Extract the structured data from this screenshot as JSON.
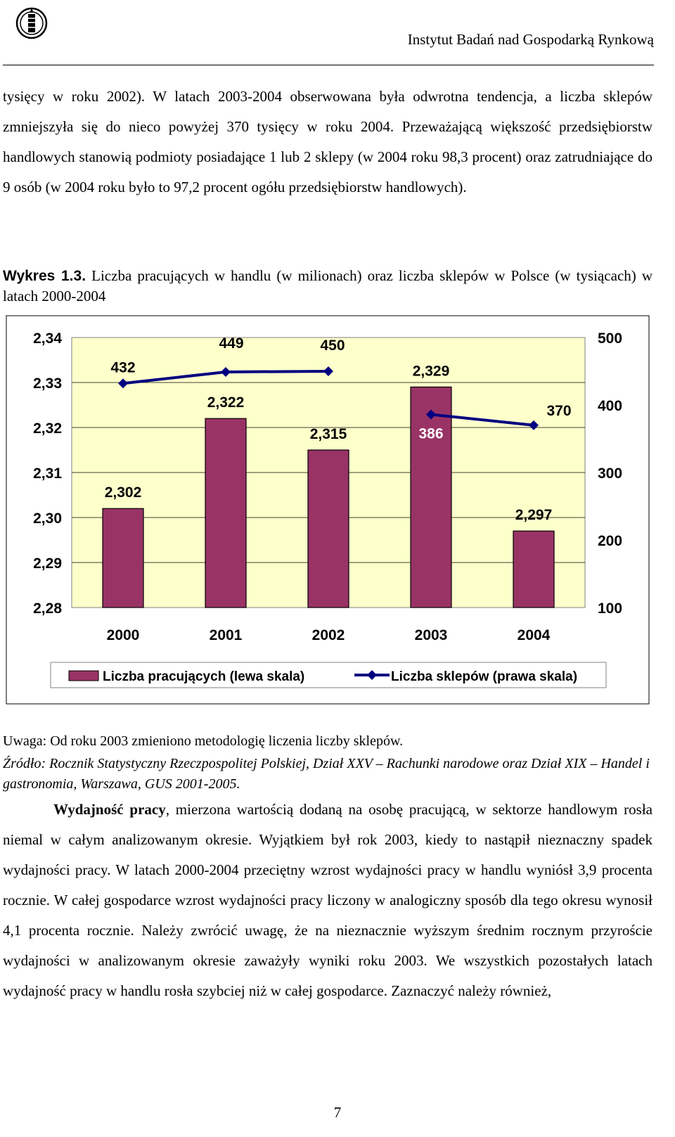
{
  "header": {
    "institute": "Instytut Badań nad Gospodarką Rynkową"
  },
  "paragraph1": "tysięcy w roku 2002). W latach 2003-2004 obserwowana była odwrotna tendencja, a liczba sklepów zmniejszyła się do nieco powyżej 370 tysięcy w roku 2004. Przeważającą większość przedsiębiorstw handlowych stanowią podmioty posiadające 1 lub 2 sklepy (w 2004 roku 98,3 procent) oraz zatrudniające do 9 osób (w 2004 roku było to 97,2 procent ogółu przedsiębiorstw handlowych).",
  "figure": {
    "label": "Wykres 1.3.",
    "caption": "Liczba pracujących w handlu (w milionach) oraz liczba sklepów w Polsce (w tysiącach) w latach 2000-2004"
  },
  "chart_data": {
    "type": "bar",
    "categories": [
      "2000",
      "2001",
      "2002",
      "2003",
      "2004"
    ],
    "series": [
      {
        "name": "Liczba pracujących (lewa skala)",
        "type": "bar",
        "axis": "left",
        "values": [
          2.302,
          2.322,
          2.315,
          2.329,
          2.297
        ],
        "labels": [
          "2,302",
          "2,322",
          "2,315",
          "2,329",
          "2,297"
        ],
        "color": "#993366"
      },
      {
        "name": "Liczba sklepów (prawa skala)",
        "type": "line",
        "axis": "right",
        "values": [
          432,
          449,
          450,
          386,
          370
        ],
        "labels": [
          "432",
          "449",
          "450",
          "386",
          "370"
        ],
        "color": "#000080"
      }
    ],
    "left_axis": {
      "min": 2.28,
      "max": 2.34,
      "ticks": [
        "2,34",
        "2,33",
        "2,32",
        "2,31",
        "2,30",
        "2,29",
        "2,28"
      ]
    },
    "right_axis": {
      "min": 100,
      "max": 500,
      "ticks": [
        "500",
        "400",
        "300",
        "200",
        "100"
      ]
    },
    "plot_background": "#ffffcc",
    "grid": true,
    "legend_position": "bottom"
  },
  "note": "Uwaga: Od roku 2003 zmieniono metodologię liczenia liczby sklepów.",
  "source": "Źródło: Rocznik Statystyczny Rzeczpospolitej Polskiej, Dział XXV – Rachunki narodowe oraz Dział XIX – Handel i gastronomia, Warszawa, GUS 2001-2005.",
  "paragraph2_bold": "Wydajność pracy",
  "paragraph2": ", mierzona wartością dodaną na osobę pracującą, w sektorze handlowym rosła niemal w całym analizowanym okresie. Wyjątkiem był rok 2003, kiedy to nastąpił nieznaczny spadek wydajności pracy. W latach 2000-2004 przeciętny wzrost wydajności pracy w handlu wyniósł 3,9 procenta rocznie. W całej gospodarce wzrost wydajności pracy liczony w analogiczny sposób dla tego okresu wynosił 4,1 procenta rocznie. Należy zwrócić uwagę, że na nieznacznie wyższym średnim rocznym przyroście wydajności w analizowanym okresie zaważyły wyniki roku 2003. We wszystkich pozostałych latach wydajność pracy w handlu rosła szybciej niż w całej gospodarce. Zaznaczyć należy również,",
  "page_number": "7"
}
